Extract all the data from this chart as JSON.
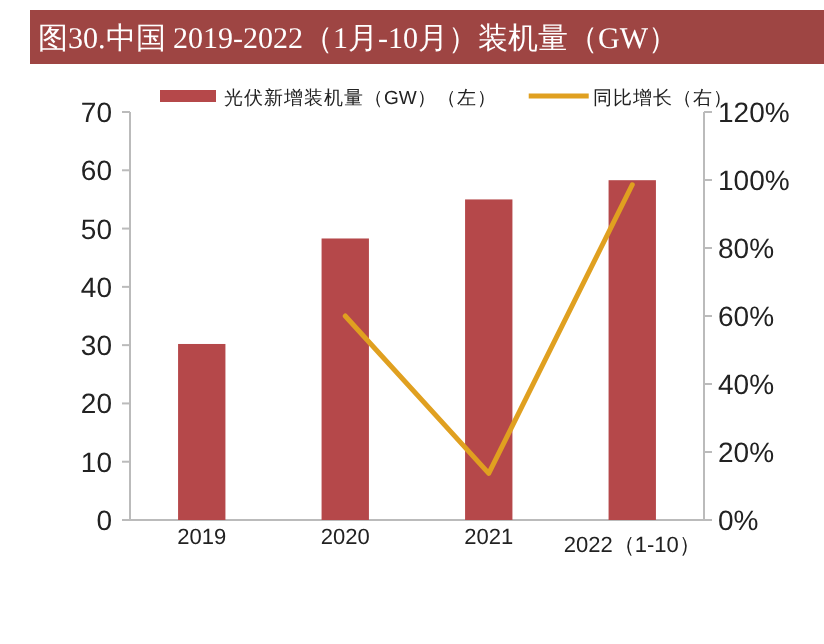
{
  "chart_data": {
    "type": "bar",
    "title": "图30.中国 2019-2022（1月-10月）装机量（GW）",
    "categories": [
      "2019",
      "2020",
      "2021",
      "2022（1-10）"
    ],
    "series": [
      {
        "name": "光伏新增装机量（GW）（左）",
        "color": "#b5484a",
        "values": [
          30.2,
          48.3,
          55.0,
          58.3
        ]
      },
      {
        "name": "同比增长（右）",
        "color": "#e0a020",
        "type": "line",
        "axis": "y2",
        "values": [
          null,
          60,
          13.7,
          98.6
        ]
      }
    ],
    "ylim": [
      0,
      70
    ],
    "yticks": [
      0,
      10,
      20,
      30,
      40,
      50,
      60,
      70
    ],
    "y2lim": [
      0,
      120
    ],
    "y2ticks": [
      {
        "value": 0,
        "label": "0%"
      },
      {
        "value": 20,
        "label": "20%"
      },
      {
        "value": 40,
        "label": "40%"
      },
      {
        "value": 60,
        "label": "60%"
      },
      {
        "value": 80,
        "label": "80%"
      },
      {
        "value": 100,
        "label": "100%"
      },
      {
        "value": 120,
        "label": "120%"
      }
    ],
    "legend": "top",
    "grid": false,
    "marker": "none",
    "line_style": "solid"
  }
}
